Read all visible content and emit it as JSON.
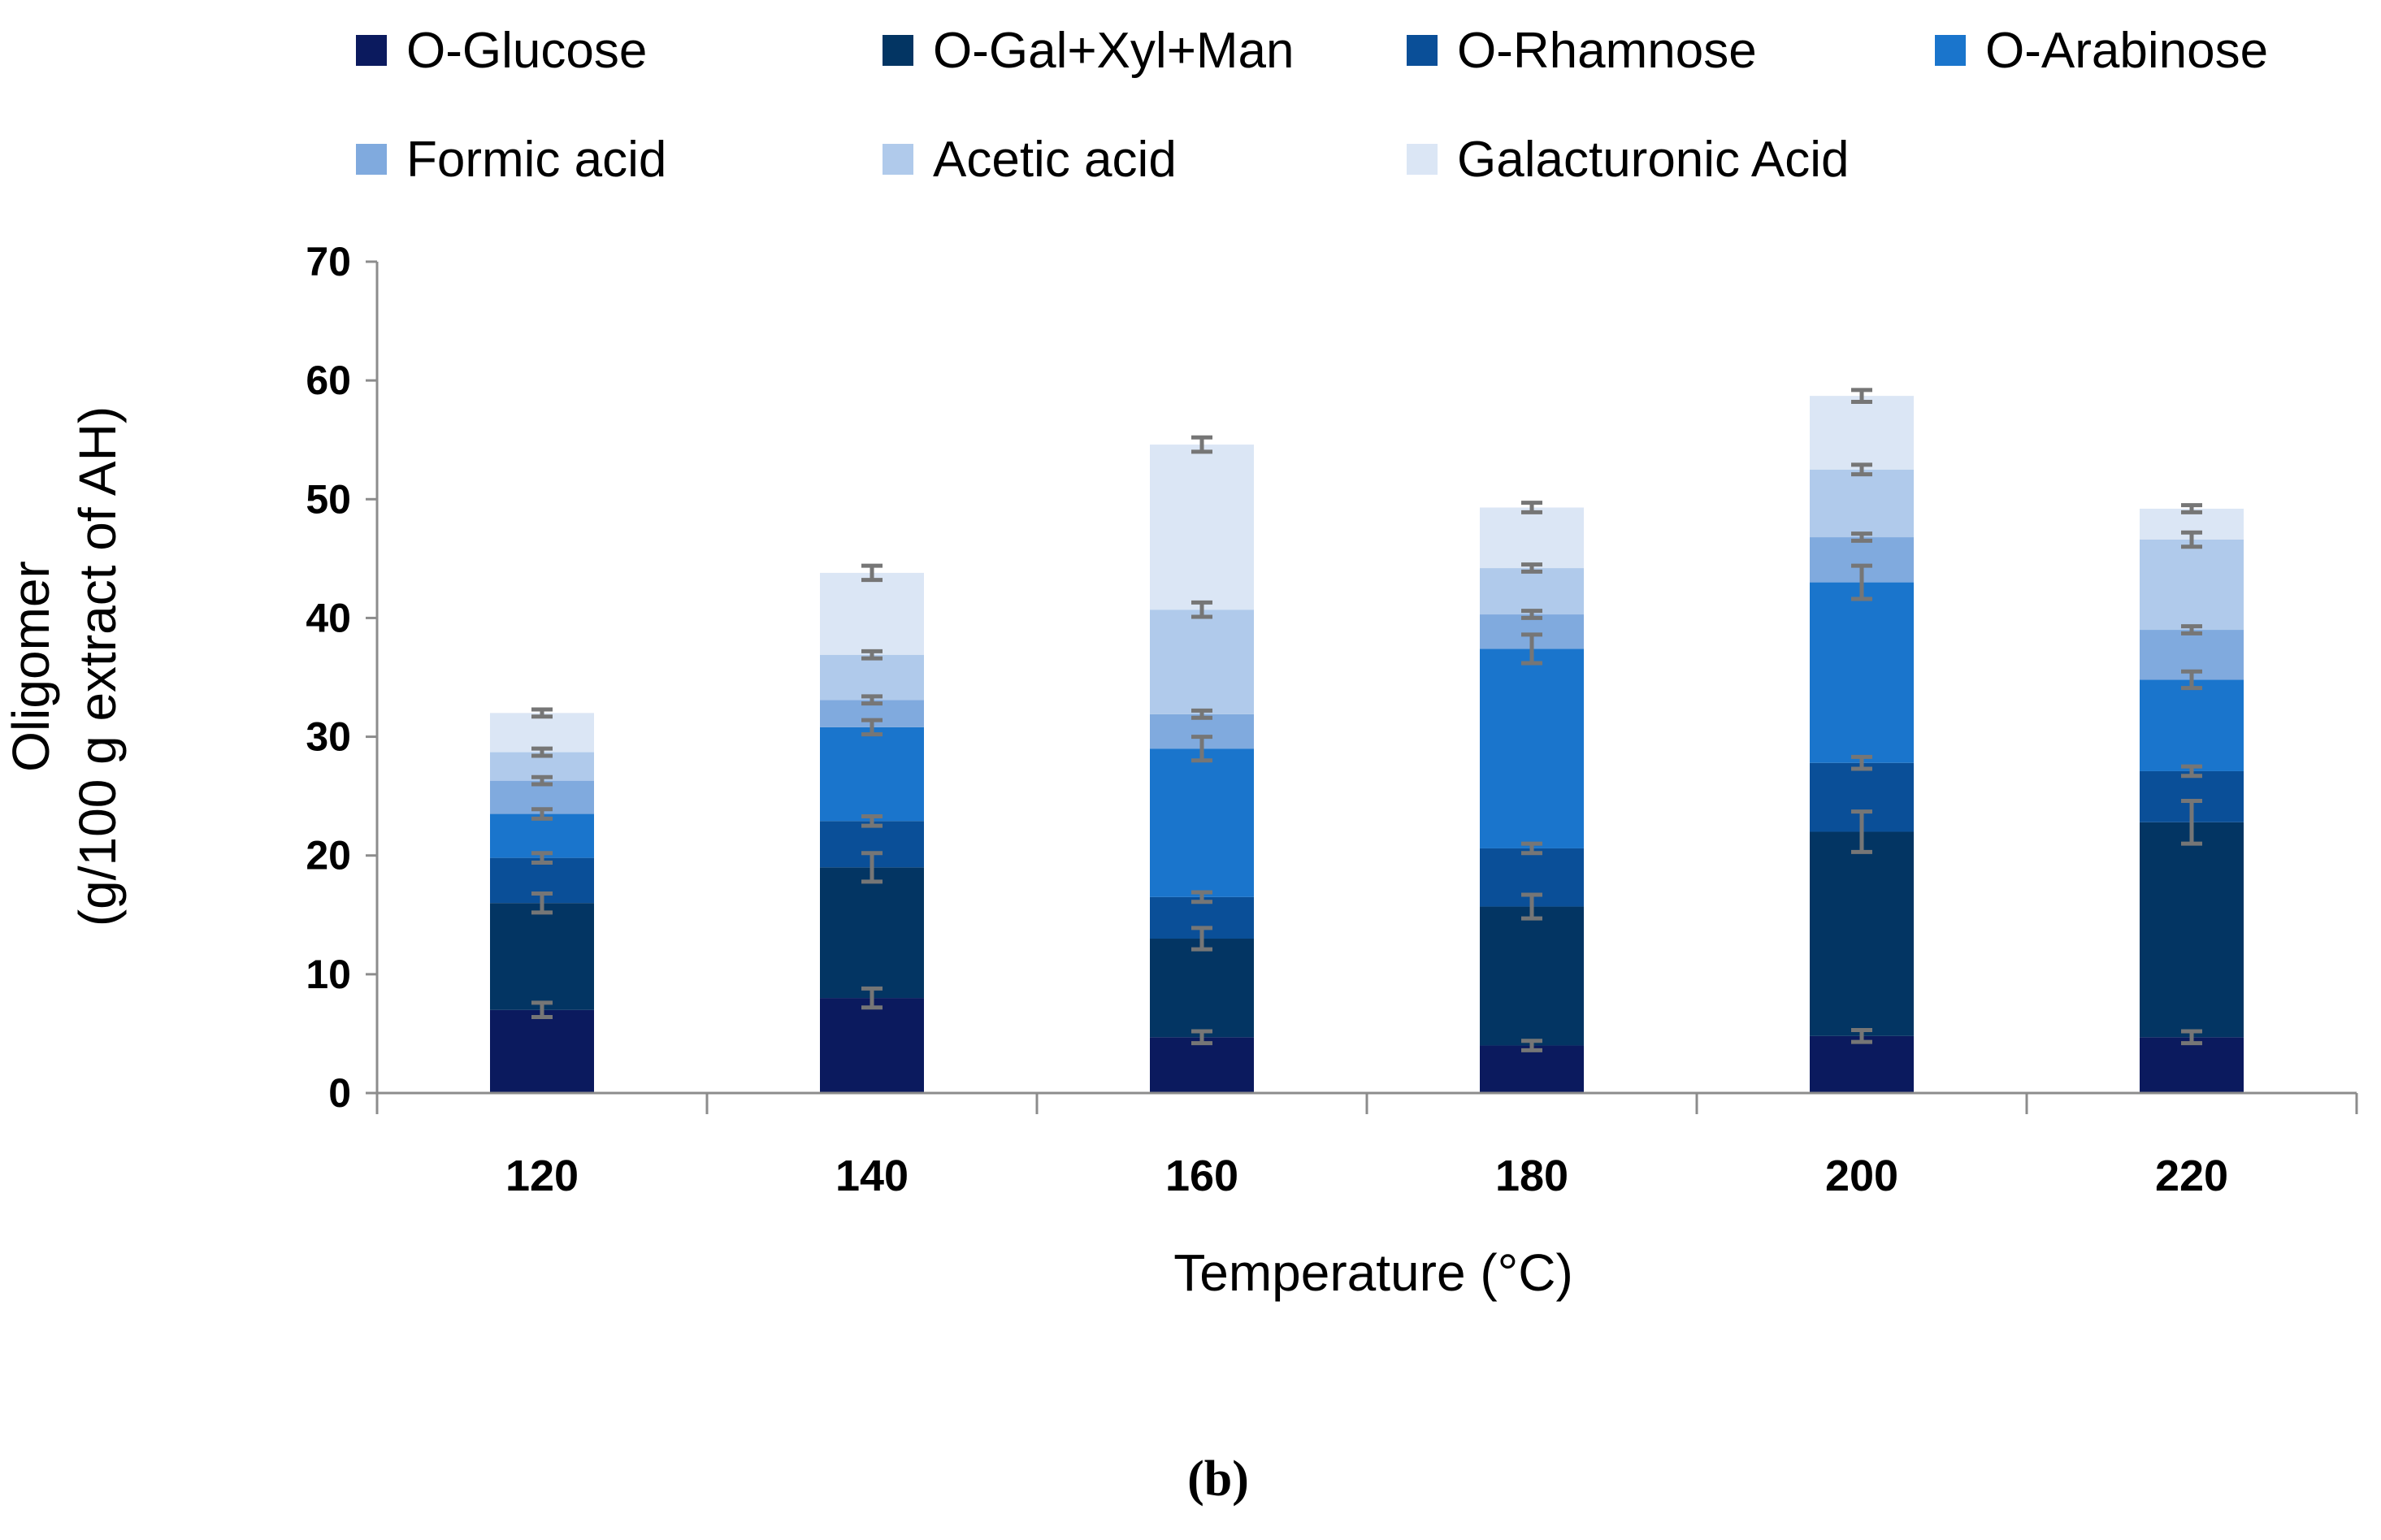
{
  "panel_label_open": "(",
  "panel_label_letter": "b",
  "panel_label_close": ")",
  "chart_data": {
    "type": "bar",
    "stacked": true,
    "title": "",
    "xlabel": "Temperature (°C)",
    "ylabel_line1": "Oligomer",
    "ylabel_line2": "(g/100 g extract of AH)",
    "ylim": [
      0,
      70
    ],
    "yticks": [
      "0",
      "10",
      "20",
      "30",
      "40",
      "50",
      "60",
      "70"
    ],
    "grid": false,
    "legend_position": "top",
    "categories": [
      "120",
      "140",
      "160",
      "180",
      "200",
      "220"
    ],
    "series": [
      {
        "name": "O-Glucose",
        "color": "#0b1a5e",
        "values": [
          7.0,
          8.0,
          4.7,
          4.0,
          4.8,
          4.7
        ],
        "errors": [
          0.6,
          0.8,
          0.5,
          0.4,
          0.5,
          0.5
        ]
      },
      {
        "name": "O-Gal+Xyl+Man",
        "color": "#033563",
        "values": [
          9.0,
          11.0,
          8.3,
          11.7,
          17.2,
          18.1
        ],
        "errors": [
          0.8,
          1.2,
          0.9,
          1.0,
          1.7,
          1.8
        ]
      },
      {
        "name": "O-Rhamnose",
        "color": "#0a4f98",
        "values": [
          3.8,
          3.9,
          3.5,
          4.9,
          5.8,
          4.3
        ],
        "errors": [
          0.4,
          0.4,
          0.4,
          0.4,
          0.5,
          0.4
        ]
      },
      {
        "name": "O-Arabinose",
        "color": "#1a75cc",
        "values": [
          3.7,
          7.9,
          12.5,
          16.8,
          15.2,
          7.7
        ],
        "errors": [
          0.4,
          0.6,
          1.0,
          1.2,
          1.4,
          0.7
        ]
      },
      {
        "name": "Formic acid",
        "color": "#80aade",
        "values": [
          2.8,
          2.3,
          2.9,
          2.9,
          3.8,
          4.2
        ],
        "errors": [
          0.3,
          0.3,
          0.3,
          0.3,
          0.3,
          0.3
        ]
      },
      {
        "name": "Acetic acid",
        "color": "#b0caeb",
        "values": [
          2.4,
          3.8,
          8.8,
          3.9,
          5.7,
          7.6
        ],
        "errors": [
          0.3,
          0.3,
          0.6,
          0.3,
          0.4,
          0.6
        ]
      },
      {
        "name": "Galacturonic Acid",
        "color": "#dbe6f5",
        "values": [
          3.3,
          6.9,
          13.9,
          5.1,
          6.2,
          2.6
        ],
        "errors": [
          0.3,
          0.6,
          0.6,
          0.4,
          0.5,
          0.3
        ]
      }
    ]
  }
}
